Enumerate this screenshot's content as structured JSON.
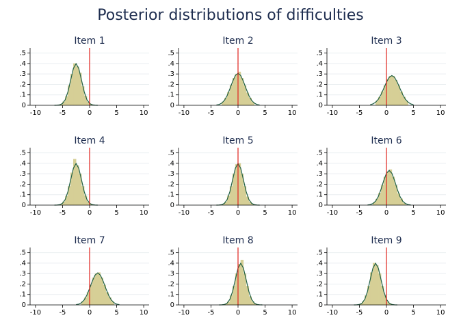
{
  "title": "Posterior distributions of difficulties",
  "chart_data": [
    {
      "type": "histogram",
      "title": "Item 1",
      "bins": [
        -5.5,
        -5,
        -4.5,
        -4,
        -3.5,
        -3,
        -2.5,
        -2,
        -1.5,
        -1,
        -0.5,
        0,
        0.5
      ],
      "counts": [
        0.01,
        0.034,
        0.085,
        0.19,
        0.3,
        0.4,
        0.37,
        0.31,
        0.18,
        0.09,
        0.03,
        0.01
      ],
      "density": {
        "x": [
          -6.5,
          -6,
          -5.5,
          -5,
          -4.5,
          -4,
          -3.5,
          -3,
          -2.5,
          -2,
          -1.5,
          -1,
          -0.5,
          0,
          0.5,
          1,
          1.5
        ],
        "y": [
          0,
          0.001,
          0.004,
          0.018,
          0.054,
          0.13,
          0.242,
          0.352,
          0.399,
          0.352,
          0.242,
          0.13,
          0.054,
          0.018,
          0.004,
          0.001,
          0
        ]
      },
      "refline": 0,
      "bar_color": "#d6cf96",
      "line_color": "#1f5f44",
      "refline_color": "#e0201b",
      "xlim": [
        -11,
        11
      ],
      "ylim": [
        0,
        0.55
      ],
      "xticks": [
        -10,
        -5,
        0,
        5,
        10
      ],
      "yticks": [
        0,
        {
          "value": 0.1,
          "label": ".1"
        },
        {
          "value": 0.2,
          "label": ".2"
        },
        {
          "value": 0.3,
          "label": ".3"
        },
        {
          "value": 0.4,
          "label": ".4"
        },
        {
          "value": 0.5,
          "label": ".5"
        }
      ],
      "grid": true
    },
    {
      "type": "histogram",
      "title": "Item 2",
      "bins": [
        -3,
        -2.5,
        -2,
        -1.5,
        -1,
        -0.5,
        0,
        0.5,
        1,
        1.5,
        2,
        2.5,
        3
      ],
      "counts": [
        0.033,
        0.069,
        0.124,
        0.194,
        0.26,
        0.3,
        0.32,
        0.26,
        0.19,
        0.12,
        0.07,
        0.03
      ],
      "density": {
        "x": [
          -4,
          -3.5,
          -3,
          -2.5,
          -2,
          -1.5,
          -1,
          -0.5,
          0,
          0.5,
          1,
          1.5,
          2,
          2.5,
          3,
          3.5,
          4
        ],
        "y": [
          0.003,
          0.008,
          0.021,
          0.048,
          0.094,
          0.158,
          0.228,
          0.285,
          0.307,
          0.285,
          0.228,
          0.158,
          0.094,
          0.048,
          0.021,
          0.008,
          0.003
        ]
      },
      "refline": 0,
      "bar_color": "#d6cf96",
      "line_color": "#1f5f44",
      "refline_color": "#e0201b",
      "xlim": [
        -11,
        11
      ],
      "ylim": [
        0,
        0.55
      ],
      "xticks": [
        -10,
        -5,
        0,
        5,
        10
      ],
      "yticks": [
        0,
        {
          "value": 0.1,
          "label": ".1"
        },
        {
          "value": 0.2,
          "label": ".2"
        },
        {
          "value": 0.3,
          "label": ".3"
        },
        {
          "value": 0.4,
          "label": ".4"
        },
        {
          "value": 0.5,
          "label": ".5"
        }
      ],
      "grid": true
    },
    {
      "type": "histogram",
      "title": "Item 3",
      "bins": [
        -2,
        -1.5,
        -1,
        -0.5,
        0,
        0.5,
        1,
        1.5,
        2,
        2.5,
        3,
        3.5,
        4
      ],
      "counts": [
        0.041,
        0.078,
        0.131,
        0.19,
        0.25,
        0.28,
        0.28,
        0.24,
        0.19,
        0.13,
        0.08,
        0.04
      ],
      "density": {
        "x": [
          -3,
          -2.5,
          -2,
          -1.5,
          -1,
          -0.5,
          0,
          0.5,
          1,
          1.5,
          2,
          2.5,
          3,
          3.5,
          4,
          4.5,
          5
        ],
        "y": [
          0.005,
          0.013,
          0.029,
          0.058,
          0.103,
          0.161,
          0.221,
          0.267,
          0.285,
          0.267,
          0.221,
          0.161,
          0.103,
          0.058,
          0.029,
          0.013,
          0.005
        ]
      },
      "refline": 0,
      "bar_color": "#d6cf96",
      "line_color": "#1f5f44",
      "refline_color": "#e0201b",
      "xlim": [
        -11,
        11
      ],
      "ylim": [
        0,
        0.55
      ],
      "xticks": [
        -10,
        -5,
        0,
        5,
        10
      ],
      "yticks": [
        0,
        {
          "value": 0.1,
          "label": ".1"
        },
        {
          "value": 0.2,
          "label": ".2"
        },
        {
          "value": 0.3,
          "label": ".3"
        },
        {
          "value": 0.4,
          "label": ".4"
        },
        {
          "value": 0.5,
          "label": ".5"
        }
      ],
      "grid": true
    },
    {
      "type": "histogram",
      "title": "Item 4",
      "bins": [
        -5.5,
        -5,
        -4.5,
        -4,
        -3.5,
        -3,
        -2.5,
        -2,
        -1.5,
        -1,
        -0.5,
        0,
        0.5
      ],
      "counts": [
        0.009,
        0.032,
        0.086,
        0.18,
        0.31,
        0.44,
        0.38,
        0.3,
        0.18,
        0.09,
        0.03,
        0.01
      ],
      "density": {
        "x": [
          -6.5,
          -6,
          -5.5,
          -5,
          -4.5,
          -4,
          -3.5,
          -3,
          -2.5,
          -2,
          -1.5,
          -1,
          -0.5,
          0,
          0.5,
          1,
          1.5
        ],
        "y": [
          0,
          0.001,
          0.004,
          0.018,
          0.054,
          0.13,
          0.242,
          0.352,
          0.399,
          0.352,
          0.242,
          0.13,
          0.054,
          0.018,
          0.004,
          0.001,
          0
        ]
      },
      "refline": 0,
      "bar_color": "#d6cf96",
      "line_color": "#1f5f44",
      "refline_color": "#e0201b",
      "xlim": [
        -11,
        11
      ],
      "ylim": [
        0,
        0.55
      ],
      "xticks": [
        -10,
        -5,
        0,
        5,
        10
      ],
      "yticks": [
        0,
        {
          "value": 0.1,
          "label": ".1"
        },
        {
          "value": 0.2,
          "label": ".2"
        },
        {
          "value": 0.3,
          "label": ".3"
        },
        {
          "value": 0.4,
          "label": ".4"
        },
        {
          "value": 0.5,
          "label": ".5"
        }
      ],
      "grid": true
    },
    {
      "type": "histogram",
      "title": "Item 5",
      "bins": [
        -3,
        -2.5,
        -2,
        -1.5,
        -1,
        -0.5,
        0,
        0.5,
        1,
        1.5,
        2,
        2.5,
        3
      ],
      "counts": [
        0.009,
        0.03,
        0.09,
        0.18,
        0.3,
        0.39,
        0.4,
        0.3,
        0.18,
        0.08,
        0.03,
        0.01
      ],
      "density": {
        "x": [
          -4,
          -3.5,
          -3,
          -2.5,
          -2,
          -1.5,
          -1,
          -0.5,
          0,
          0.5,
          1,
          1.5,
          2,
          2.5,
          3,
          3.5,
          4
        ],
        "y": [
          0,
          0.001,
          0.004,
          0.018,
          0.054,
          0.13,
          0.242,
          0.352,
          0.399,
          0.352,
          0.242,
          0.13,
          0.054,
          0.018,
          0.004,
          0.001,
          0
        ]
      },
      "refline": 0,
      "bar_color": "#d6cf96",
      "line_color": "#1f5f44",
      "refline_color": "#e0201b",
      "xlim": [
        -11,
        11
      ],
      "ylim": [
        0,
        0.55
      ],
      "xticks": [
        -10,
        -5,
        0,
        5,
        10
      ],
      "yticks": [
        0,
        {
          "value": 0.1,
          "label": ".1"
        },
        {
          "value": 0.2,
          "label": ".2"
        },
        {
          "value": 0.3,
          "label": ".3"
        },
        {
          "value": 0.4,
          "label": ".4"
        },
        {
          "value": 0.5,
          "label": ".5"
        }
      ],
      "grid": true
    },
    {
      "type": "histogram",
      "title": "Item 6",
      "bins": [
        -2.5,
        -2,
        -1.5,
        -1,
        -0.5,
        0,
        0.5,
        1,
        1.5,
        2,
        2.5,
        3,
        3.5
      ],
      "counts": [
        0.024,
        0.058,
        0.115,
        0.19,
        0.27,
        0.32,
        0.34,
        0.27,
        0.19,
        0.11,
        0.06,
        0.02
      ],
      "density": {
        "x": [
          -3.5,
          -3,
          -2.5,
          -2,
          -1.5,
          -1,
          -0.5,
          0,
          0.5,
          1,
          1.5,
          2,
          2.5,
          3,
          3.5,
          4,
          4.5
        ],
        "y": [
          0.001,
          0.005,
          0.015,
          0.038,
          0.083,
          0.152,
          0.235,
          0.305,
          0.332,
          0.305,
          0.235,
          0.152,
          0.083,
          0.038,
          0.015,
          0.005,
          0.001
        ]
      },
      "refline": 0,
      "bar_color": "#d6cf96",
      "line_color": "#1f5f44",
      "refline_color": "#e0201b",
      "xlim": [
        -11,
        11
      ],
      "ylim": [
        0,
        0.55
      ],
      "xticks": [
        -10,
        -5,
        0,
        5,
        10
      ],
      "yticks": [
        0,
        {
          "value": 0.1,
          "label": ".1"
        },
        {
          "value": 0.2,
          "label": ".2"
        },
        {
          "value": 0.3,
          "label": ".3"
        },
        {
          "value": 0.4,
          "label": ".4"
        },
        {
          "value": 0.5,
          "label": ".5"
        }
      ],
      "grid": true
    },
    {
      "type": "histogram",
      "title": "Item 7",
      "bins": [
        -1.5,
        -1,
        -0.5,
        0,
        0.5,
        1,
        1.5,
        2,
        2.5,
        3,
        3.5,
        4,
        4.5
      ],
      "counts": [
        0.033,
        0.069,
        0.12,
        0.19,
        0.26,
        0.3,
        0.31,
        0.26,
        0.19,
        0.12,
        0.07,
        0.03
      ],
      "density": {
        "x": [
          -2.5,
          -2,
          -1.5,
          -1,
          -0.5,
          0,
          0.5,
          1,
          1.5,
          2,
          2.5,
          3,
          3.5,
          4,
          4.5,
          5,
          5.5
        ],
        "y": [
          0.003,
          0.008,
          0.021,
          0.048,
          0.094,
          0.158,
          0.228,
          0.285,
          0.307,
          0.285,
          0.228,
          0.158,
          0.094,
          0.048,
          0.021,
          0.008,
          0.003
        ]
      },
      "refline": 0,
      "bar_color": "#d6cf96",
      "line_color": "#1f5f44",
      "refline_color": "#e0201b",
      "xlim": [
        -11,
        11
      ],
      "ylim": [
        0,
        0.55
      ],
      "xticks": [
        -10,
        -5,
        0,
        5,
        10
      ],
      "yticks": [
        0,
        {
          "value": 0.1,
          "label": ".1"
        },
        {
          "value": 0.2,
          "label": ".2"
        },
        {
          "value": 0.3,
          "label": ".3"
        },
        {
          "value": 0.4,
          "label": ".4"
        },
        {
          "value": 0.5,
          "label": ".5"
        }
      ],
      "grid": true
    },
    {
      "type": "histogram",
      "title": "Item 8",
      "bins": [
        -2.5,
        -2,
        -1.5,
        -1,
        -0.5,
        0,
        0.5,
        1,
        1.5,
        2,
        2.5,
        3,
        3.5
      ],
      "counts": [
        0.009,
        0.03,
        0.09,
        0.18,
        0.3,
        0.39,
        0.43,
        0.3,
        0.18,
        0.08,
        0.03,
        0.01
      ],
      "density": {
        "x": [
          -3.5,
          -3,
          -2.5,
          -2,
          -1.5,
          -1,
          -0.5,
          0,
          0.5,
          1,
          1.5,
          2,
          2.5,
          3,
          3.5,
          4,
          4.5
        ],
        "y": [
          0,
          0.001,
          0.004,
          0.018,
          0.054,
          0.13,
          0.242,
          0.352,
          0.399,
          0.352,
          0.242,
          0.13,
          0.054,
          0.018,
          0.004,
          0.001,
          0
        ]
      },
      "refline": 0,
      "bar_color": "#d6cf96",
      "line_color": "#1f5f44",
      "refline_color": "#e0201b",
      "xlim": [
        -11,
        11
      ],
      "ylim": [
        0,
        0.55
      ],
      "xticks": [
        -10,
        -5,
        0,
        5,
        10
      ],
      "yticks": [
        0,
        {
          "value": 0.1,
          "label": ".1"
        },
        {
          "value": 0.2,
          "label": ".2"
        },
        {
          "value": 0.3,
          "label": ".3"
        },
        {
          "value": 0.4,
          "label": ".4"
        },
        {
          "value": 0.5,
          "label": ".5"
        }
      ],
      "grid": true
    },
    {
      "type": "histogram",
      "title": "Item 9",
      "bins": [
        -5,
        -4.5,
        -4,
        -3.5,
        -3,
        -2.5,
        -2,
        -1.5,
        -1,
        -0.5,
        0,
        0.5,
        1
      ],
      "counts": [
        0.009,
        0.032,
        0.09,
        0.18,
        0.31,
        0.4,
        0.38,
        0.3,
        0.18,
        0.09,
        0.03,
        0.01
      ],
      "density": {
        "x": [
          -6,
          -5.5,
          -5,
          -4.5,
          -4,
          -3.5,
          -3,
          -2.5,
          -2,
          -1.5,
          -1,
          -0.5,
          0,
          0.5,
          1,
          1.5,
          2
        ],
        "y": [
          0,
          0.001,
          0.004,
          0.018,
          0.054,
          0.13,
          0.242,
          0.352,
          0.399,
          0.352,
          0.242,
          0.13,
          0.054,
          0.018,
          0.004,
          0.001,
          0
        ]
      },
      "refline": 0,
      "bar_color": "#d6cf96",
      "line_color": "#1f5f44",
      "refline_color": "#e0201b",
      "xlim": [
        -11,
        11
      ],
      "ylim": [
        0,
        0.55
      ],
      "xticks": [
        -10,
        -5,
        0,
        5,
        10
      ],
      "yticks": [
        0,
        {
          "value": 0.1,
          "label": ".1"
        },
        {
          "value": 0.2,
          "label": ".2"
        },
        {
          "value": 0.3,
          "label": ".3"
        },
        {
          "value": 0.4,
          "label": ".4"
        },
        {
          "value": 0.5,
          "label": ".5"
        }
      ],
      "grid": true
    }
  ]
}
